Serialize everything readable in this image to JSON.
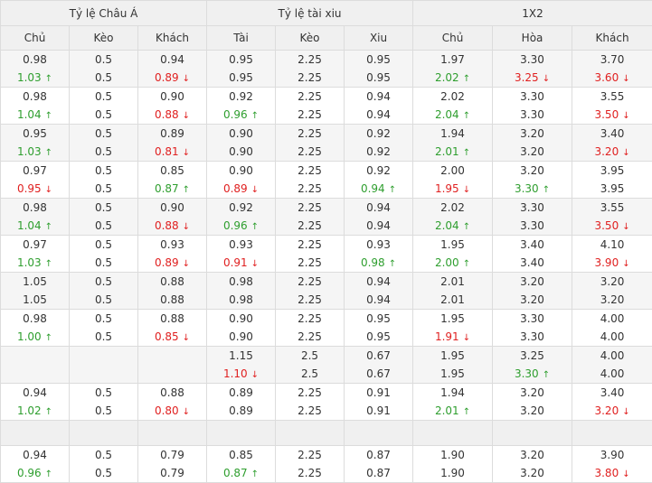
{
  "colors": {
    "up": "#2e9e2e",
    "down": "#e02020",
    "neutral": "#333333"
  },
  "groups": [
    "Tỷ lệ Châu Á",
    "Tỷ lệ tài xiu",
    "1X2"
  ],
  "columns": [
    "Chủ",
    "Kèo",
    "Khách",
    "Tài",
    "Kèo",
    "Xiu",
    "Chủ",
    "Hòa",
    "Khách"
  ],
  "rows": [
    {
      "cells": [
        [
          {
            "v": "0.98"
          },
          {
            "v": "1.03",
            "d": "up"
          }
        ],
        [
          {
            "v": "0.5"
          },
          {
            "v": "0.5"
          }
        ],
        [
          {
            "v": "0.94"
          },
          {
            "v": "0.89",
            "d": "down"
          }
        ],
        [
          {
            "v": "0.95"
          },
          {
            "v": "0.95"
          }
        ],
        [
          {
            "v": "2.25"
          },
          {
            "v": "2.25"
          }
        ],
        [
          {
            "v": "0.95"
          },
          {
            "v": "0.95"
          }
        ],
        [
          {
            "v": "1.97"
          },
          {
            "v": "2.02",
            "d": "up"
          }
        ],
        [
          {
            "v": "3.30"
          },
          {
            "v": "3.25",
            "d": "down"
          }
        ],
        [
          {
            "v": "3.70"
          },
          {
            "v": "3.60",
            "d": "down"
          }
        ]
      ]
    },
    {
      "cells": [
        [
          {
            "v": "0.98"
          },
          {
            "v": "1.04",
            "d": "up"
          }
        ],
        [
          {
            "v": "0.5"
          },
          {
            "v": "0.5"
          }
        ],
        [
          {
            "v": "0.90"
          },
          {
            "v": "0.88",
            "d": "down"
          }
        ],
        [
          {
            "v": "0.92"
          },
          {
            "v": "0.96",
            "d": "up"
          }
        ],
        [
          {
            "v": "2.25"
          },
          {
            "v": "2.25"
          }
        ],
        [
          {
            "v": "0.94"
          },
          {
            "v": "0.94"
          }
        ],
        [
          {
            "v": "2.02"
          },
          {
            "v": "2.04",
            "d": "up"
          }
        ],
        [
          {
            "v": "3.30"
          },
          {
            "v": "3.30"
          }
        ],
        [
          {
            "v": "3.55"
          },
          {
            "v": "3.50",
            "d": "down"
          }
        ]
      ]
    },
    {
      "cells": [
        [
          {
            "v": "0.95"
          },
          {
            "v": "1.03",
            "d": "up"
          }
        ],
        [
          {
            "v": "0.5"
          },
          {
            "v": "0.5"
          }
        ],
        [
          {
            "v": "0.89"
          },
          {
            "v": "0.81",
            "d": "down"
          }
        ],
        [
          {
            "v": "0.90"
          },
          {
            "v": "0.90"
          }
        ],
        [
          {
            "v": "2.25"
          },
          {
            "v": "2.25"
          }
        ],
        [
          {
            "v": "0.92"
          },
          {
            "v": "0.92"
          }
        ],
        [
          {
            "v": "1.94"
          },
          {
            "v": "2.01",
            "d": "up"
          }
        ],
        [
          {
            "v": "3.20"
          },
          {
            "v": "3.20"
          }
        ],
        [
          {
            "v": "3.40"
          },
          {
            "v": "3.20",
            "d": "down"
          }
        ]
      ]
    },
    {
      "cells": [
        [
          {
            "v": "0.97"
          },
          {
            "v": "0.95",
            "d": "down"
          }
        ],
        [
          {
            "v": "0.5"
          },
          {
            "v": "0.5"
          }
        ],
        [
          {
            "v": "0.85"
          },
          {
            "v": "0.87",
            "d": "up"
          }
        ],
        [
          {
            "v": "0.90"
          },
          {
            "v": "0.89",
            "d": "down"
          }
        ],
        [
          {
            "v": "2.25"
          },
          {
            "v": "2.25"
          }
        ],
        [
          {
            "v": "0.92"
          },
          {
            "v": "0.94",
            "d": "up"
          }
        ],
        [
          {
            "v": "2.00"
          },
          {
            "v": "1.95",
            "d": "down"
          }
        ],
        [
          {
            "v": "3.20"
          },
          {
            "v": "3.30",
            "d": "up"
          }
        ],
        [
          {
            "v": "3.95"
          },
          {
            "v": "3.95"
          }
        ]
      ]
    },
    {
      "cells": [
        [
          {
            "v": "0.98"
          },
          {
            "v": "1.04",
            "d": "up"
          }
        ],
        [
          {
            "v": "0.5"
          },
          {
            "v": "0.5"
          }
        ],
        [
          {
            "v": "0.90"
          },
          {
            "v": "0.88",
            "d": "down"
          }
        ],
        [
          {
            "v": "0.92"
          },
          {
            "v": "0.96",
            "d": "up"
          }
        ],
        [
          {
            "v": "2.25"
          },
          {
            "v": "2.25"
          }
        ],
        [
          {
            "v": "0.94"
          },
          {
            "v": "0.94"
          }
        ],
        [
          {
            "v": "2.02"
          },
          {
            "v": "2.04",
            "d": "up"
          }
        ],
        [
          {
            "v": "3.30"
          },
          {
            "v": "3.30"
          }
        ],
        [
          {
            "v": "3.55"
          },
          {
            "v": "3.50",
            "d": "down"
          }
        ]
      ]
    },
    {
      "cells": [
        [
          {
            "v": "0.97"
          },
          {
            "v": "1.03",
            "d": "up"
          }
        ],
        [
          {
            "v": "0.5"
          },
          {
            "v": "0.5"
          }
        ],
        [
          {
            "v": "0.93"
          },
          {
            "v": "0.89",
            "d": "down"
          }
        ],
        [
          {
            "v": "0.93"
          },
          {
            "v": "0.91",
            "d": "down"
          }
        ],
        [
          {
            "v": "2.25"
          },
          {
            "v": "2.25"
          }
        ],
        [
          {
            "v": "0.93"
          },
          {
            "v": "0.98",
            "d": "up"
          }
        ],
        [
          {
            "v": "1.95"
          },
          {
            "v": "2.00",
            "d": "up"
          }
        ],
        [
          {
            "v": "3.40"
          },
          {
            "v": "3.40"
          }
        ],
        [
          {
            "v": "4.10"
          },
          {
            "v": "3.90",
            "d": "down"
          }
        ]
      ]
    },
    {
      "cells": [
        [
          {
            "v": "1.05"
          },
          {
            "v": "1.05"
          }
        ],
        [
          {
            "v": "0.5"
          },
          {
            "v": "0.5"
          }
        ],
        [
          {
            "v": "0.88"
          },
          {
            "v": "0.88"
          }
        ],
        [
          {
            "v": "0.98"
          },
          {
            "v": "0.98"
          }
        ],
        [
          {
            "v": "2.25"
          },
          {
            "v": "2.25"
          }
        ],
        [
          {
            "v": "0.94"
          },
          {
            "v": "0.94"
          }
        ],
        [
          {
            "v": "2.01"
          },
          {
            "v": "2.01"
          }
        ],
        [
          {
            "v": "3.20"
          },
          {
            "v": "3.20"
          }
        ],
        [
          {
            "v": "3.20"
          },
          {
            "v": "3.20"
          }
        ]
      ]
    },
    {
      "cells": [
        [
          {
            "v": "0.98"
          },
          {
            "v": "1.00",
            "d": "up"
          }
        ],
        [
          {
            "v": "0.5"
          },
          {
            "v": "0.5"
          }
        ],
        [
          {
            "v": "0.88"
          },
          {
            "v": "0.85",
            "d": "down"
          }
        ],
        [
          {
            "v": "0.90"
          },
          {
            "v": "0.90"
          }
        ],
        [
          {
            "v": "2.25"
          },
          {
            "v": "2.25"
          }
        ],
        [
          {
            "v": "0.95"
          },
          {
            "v": "0.95"
          }
        ],
        [
          {
            "v": "1.95"
          },
          {
            "v": "1.91",
            "d": "down"
          }
        ],
        [
          {
            "v": "3.30"
          },
          {
            "v": "3.30"
          }
        ],
        [
          {
            "v": "4.00"
          },
          {
            "v": "4.00"
          }
        ]
      ]
    },
    {
      "cells": [
        [],
        [],
        [],
        [
          {
            "v": "1.15"
          },
          {
            "v": "1.10",
            "d": "down"
          }
        ],
        [
          {
            "v": "2.5"
          },
          {
            "v": "2.5"
          }
        ],
        [
          {
            "v": "0.67"
          },
          {
            "v": "0.67"
          }
        ],
        [
          {
            "v": "1.95"
          },
          {
            "v": "1.95"
          }
        ],
        [
          {
            "v": "3.25"
          },
          {
            "v": "3.30",
            "d": "up"
          }
        ],
        [
          {
            "v": "4.00"
          },
          {
            "v": "4.00"
          }
        ]
      ]
    },
    {
      "cells": [
        [
          {
            "v": "0.94"
          },
          {
            "v": "1.02",
            "d": "up"
          }
        ],
        [
          {
            "v": "0.5"
          },
          {
            "v": "0.5"
          }
        ],
        [
          {
            "v": "0.88"
          },
          {
            "v": "0.80",
            "d": "down"
          }
        ],
        [
          {
            "v": "0.89"
          },
          {
            "v": "0.89"
          }
        ],
        [
          {
            "v": "2.25"
          },
          {
            "v": "2.25"
          }
        ],
        [
          {
            "v": "0.91"
          },
          {
            "v": "0.91"
          }
        ],
        [
          {
            "v": "1.94"
          },
          {
            "v": "2.01",
            "d": "up"
          }
        ],
        [
          {
            "v": "3.20"
          },
          {
            "v": "3.20"
          }
        ],
        [
          {
            "v": "3.40"
          },
          {
            "v": "3.20",
            "d": "down"
          }
        ]
      ]
    },
    {
      "empty": true
    },
    {
      "cells": [
        [
          {
            "v": "0.94"
          },
          {
            "v": "0.96",
            "d": "up"
          }
        ],
        [
          {
            "v": "0.5"
          },
          {
            "v": "0.5"
          }
        ],
        [
          {
            "v": "0.79"
          },
          {
            "v": "0.79"
          }
        ],
        [
          {
            "v": "0.85"
          },
          {
            "v": "0.87",
            "d": "up"
          }
        ],
        [
          {
            "v": "2.25"
          },
          {
            "v": "2.25"
          }
        ],
        [
          {
            "v": "0.87"
          },
          {
            "v": "0.87"
          }
        ],
        [
          {
            "v": "1.90"
          },
          {
            "v": "1.90"
          }
        ],
        [
          {
            "v": "3.20"
          },
          {
            "v": "3.20"
          }
        ],
        [
          {
            "v": "3.90"
          },
          {
            "v": "3.80",
            "d": "down"
          }
        ]
      ]
    }
  ]
}
